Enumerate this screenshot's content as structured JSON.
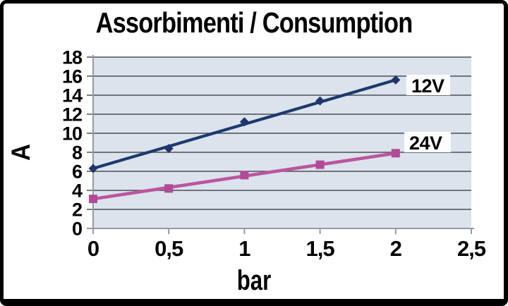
{
  "window": {
    "background": "#ffffff",
    "frame_color": "#000000"
  },
  "chart_data": {
    "type": "line",
    "title": "Assorbimenti / Consumption",
    "xlabel": "bar",
    "ylabel": "A",
    "xlim": [
      0,
      2.5
    ],
    "ylim": [
      0,
      18
    ],
    "grid": true,
    "legend_position": "inline-right-of-lines",
    "x_ticks": [
      {
        "v": 0,
        "label": "0"
      },
      {
        "v": 0.5,
        "label": "0,5"
      },
      {
        "v": 1,
        "label": "1"
      },
      {
        "v": 1.5,
        "label": "1,5"
      },
      {
        "v": 2,
        "label": "2"
      },
      {
        "v": 2.5,
        "label": "2,5"
      }
    ],
    "y_ticks": [
      {
        "v": 0,
        "label": "0"
      },
      {
        "v": 2,
        "label": "2"
      },
      {
        "v": 4,
        "label": "4"
      },
      {
        "v": 6,
        "label": "6"
      },
      {
        "v": 8,
        "label": "8"
      },
      {
        "v": 10,
        "label": "10"
      },
      {
        "v": 12,
        "label": "12"
      },
      {
        "v": 14,
        "label": "14"
      },
      {
        "v": 16,
        "label": "16"
      },
      {
        "v": 18,
        "label": "18"
      }
    ],
    "series": [
      {
        "name": "12V",
        "label": "12V",
        "color": "#1d3a6e",
        "marker_color": "#22346d",
        "marker": "diamond",
        "line": "trend",
        "x": [
          0,
          0.5,
          1,
          1.5,
          2
        ],
        "values": [
          6.3,
          8.4,
          11.2,
          13.4,
          15.6
        ]
      },
      {
        "name": "24V",
        "label": "24V",
        "color": "#bc559e",
        "marker_color": "#b04b97",
        "marker": "square",
        "line": "trend",
        "x": [
          0,
          0.5,
          1,
          1.5,
          2
        ],
        "values": [
          3.1,
          4.2,
          5.6,
          6.7,
          7.9
        ]
      }
    ],
    "colors": {
      "plot_bg": "#dce3ec",
      "grid": "#4a4e57",
      "axis": "#949aa3",
      "label_bg": "#fdfdfe",
      "text": "#000000"
    }
  }
}
